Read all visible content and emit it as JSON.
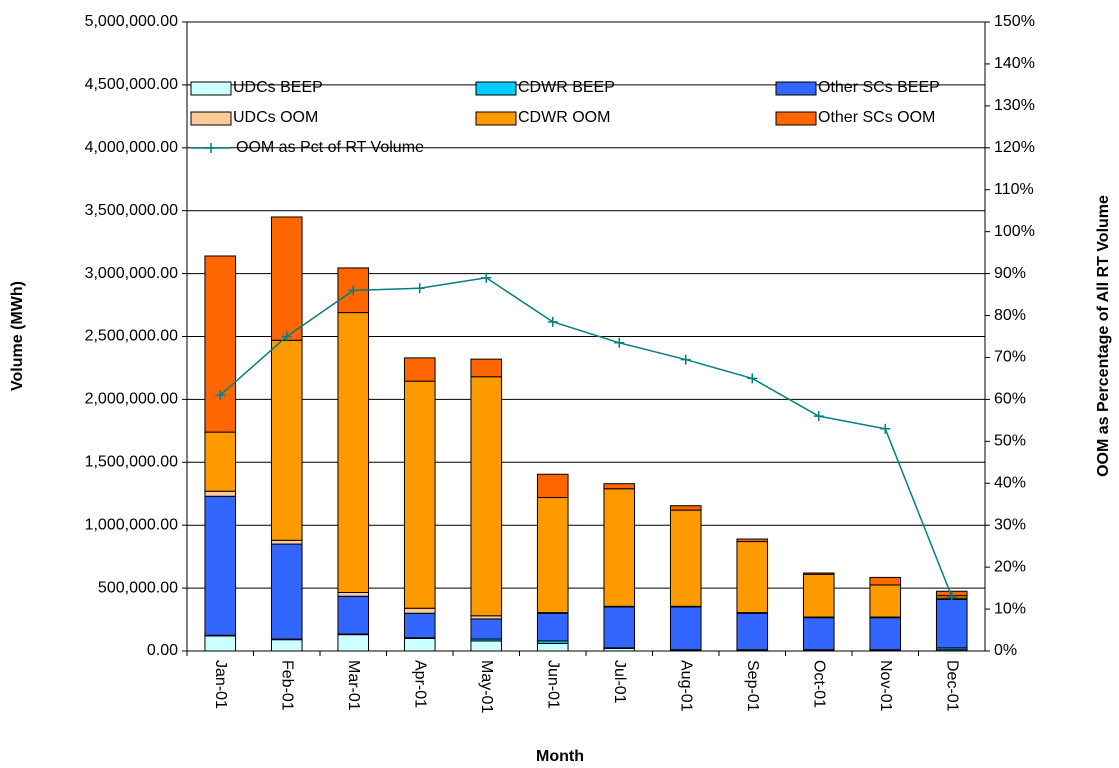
{
  "chart_data": {
    "type": "bar",
    "stacked": true,
    "x_label": "Month",
    "y_label": "Volume (MWh)",
    "y2_label": "OOM as Percentage of All RT Volume",
    "categories": [
      "Jan-01",
      "Feb-01",
      "Mar-01",
      "Apr-01",
      "May-01",
      "Jun-01",
      "Jul-01",
      "Aug-01",
      "Sep-01",
      "Oct-01",
      "Nov-01",
      "Dec-01"
    ],
    "grid": true,
    "ylim": [
      0,
      5000000
    ],
    "yticks": [
      {
        "value": 0,
        "label": "0.00"
      },
      {
        "value": 500000,
        "label": "500,000.00"
      },
      {
        "value": 1000000,
        "label": "1,000,000.00"
      },
      {
        "value": 1500000,
        "label": "1,500,000.00"
      },
      {
        "value": 2000000,
        "label": "2,000,000.00"
      },
      {
        "value": 2500000,
        "label": "2,500,000.00"
      },
      {
        "value": 3000000,
        "label": "3,000,000.00"
      },
      {
        "value": 3500000,
        "label": "3,500,000.00"
      },
      {
        "value": 4000000,
        "label": "4,000,000.00"
      },
      {
        "value": 4500000,
        "label": "4,500,000.00"
      },
      {
        "value": 5000000,
        "label": "5,000,000.00"
      }
    ],
    "y2lim": [
      0,
      150
    ],
    "y2ticks": [
      {
        "value": 0,
        "label": "0%"
      },
      {
        "value": 10,
        "label": "10%"
      },
      {
        "value": 20,
        "label": "20%"
      },
      {
        "value": 30,
        "label": "30%"
      },
      {
        "value": 40,
        "label": "40%"
      },
      {
        "value": 50,
        "label": "50%"
      },
      {
        "value": 60,
        "label": "60%"
      },
      {
        "value": 70,
        "label": "70%"
      },
      {
        "value": 80,
        "label": "80%"
      },
      {
        "value": 90,
        "label": "90%"
      },
      {
        "value": 100,
        "label": "100%"
      },
      {
        "value": 110,
        "label": "110%"
      },
      {
        "value": 120,
        "label": "120%"
      },
      {
        "value": 130,
        "label": "130%"
      },
      {
        "value": 140,
        "label": "140%"
      },
      {
        "value": 150,
        "label": "150%"
      }
    ],
    "series": [
      {
        "name": "UDCs BEEP",
        "color": "#ccffff",
        "values": [
          120000,
          90000,
          130000,
          100000,
          80000,
          60000,
          20000,
          5000,
          5000,
          5000,
          5000,
          10000
        ]
      },
      {
        "name": "CDWR BEEP",
        "color": "#00ccff",
        "values": [
          5000,
          5000,
          5000,
          5000,
          15000,
          20000,
          5000,
          5000,
          5000,
          5000,
          5000,
          15000
        ]
      },
      {
        "name": "Other SCs BEEP",
        "color": "#3366ff",
        "values": [
          1105000,
          755000,
          300000,
          195000,
          160000,
          220000,
          325000,
          340000,
          290000,
          255000,
          255000,
          385000
        ]
      },
      {
        "name": "UDCs OOM",
        "color": "#ffcc99",
        "values": [
          40000,
          30000,
          30000,
          40000,
          25000,
          5000,
          5000,
          5000,
          5000,
          5000,
          5000,
          10000
        ]
      },
      {
        "name": "CDWR OOM",
        "color": "#ff9900",
        "values": [
          470000,
          1590000,
          2225000,
          1805000,
          1900000,
          915000,
          935000,
          765000,
          565000,
          340000,
          255000,
          20000
        ]
      },
      {
        "name": "Other SCs OOM",
        "color": "#ff6600",
        "values": [
          1400000,
          980000,
          355000,
          185000,
          140000,
          185000,
          40000,
          35000,
          20000,
          10000,
          60000,
          35000
        ]
      },
      {
        "name": "OOM as Pct of RT Volume",
        "type": "line",
        "axis": "y2",
        "color": "#008080",
        "values": [
          61,
          75,
          86,
          86.5,
          89,
          78.5,
          73.5,
          69.5,
          65,
          56,
          53,
          13
        ]
      }
    ]
  }
}
